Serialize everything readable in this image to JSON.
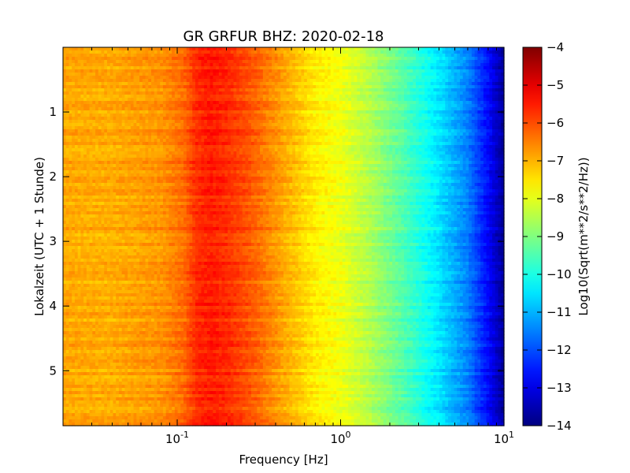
{
  "chart_data": {
    "type": "heatmap",
    "title": "GR GRFUR BHZ: 2020-02-18",
    "xlabel": "Frequency [Hz]",
    "ylabel": "Lokalzeit (UTC + 1 Stunde)",
    "x_scale": "log",
    "xlim": [
      0.02,
      10
    ],
    "x_ticks": [
      {
        "value": 0.1,
        "base": "10",
        "exp": "-1"
      },
      {
        "value": 1,
        "base": "10",
        "exp": "0"
      },
      {
        "value": 10,
        "base": "10",
        "exp": "1"
      }
    ],
    "ylim": [
      0,
      5.85
    ],
    "y_inverted": true,
    "y_ticks": [
      1,
      2,
      3,
      4,
      5
    ],
    "colorbar": {
      "label": "Log10(Sqrt(m**2/s**2/Hz))",
      "range": [
        -14,
        -4
      ],
      "ticks": [
        -4,
        -5,
        -6,
        -7,
        -8,
        -9,
        -10,
        -11,
        -12,
        -13,
        -14
      ],
      "colormap": "jet"
    },
    "mean_spectrum": [
      {
        "f": 0.02,
        "v": -6.9
      },
      {
        "f": 0.04,
        "v": -6.95
      },
      {
        "f": 0.06,
        "v": -6.8
      },
      {
        "f": 0.08,
        "v": -6.7
      },
      {
        "f": 0.11,
        "v": -6.3
      },
      {
        "f": 0.13,
        "v": -5.7
      },
      {
        "f": 0.16,
        "v": -5.5
      },
      {
        "f": 0.2,
        "v": -5.65
      },
      {
        "f": 0.3,
        "v": -6.2
      },
      {
        "f": 0.45,
        "v": -6.9
      },
      {
        "f": 0.7,
        "v": -7.6
      },
      {
        "f": 1.0,
        "v": -7.9
      },
      {
        "f": 1.5,
        "v": -8.5
      },
      {
        "f": 2.5,
        "v": -9.5
      },
      {
        "f": 4.0,
        "v": -10.5
      },
      {
        "f": 6.0,
        "v": -11.5
      },
      {
        "f": 8.0,
        "v": -12.7
      },
      {
        "f": 10.0,
        "v": -13.8
      }
    ]
  }
}
